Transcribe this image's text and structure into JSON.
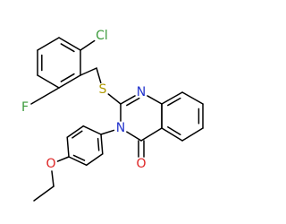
{
  "atoms": [
    {
      "label": "Cl",
      "color": "#3a9a3a"
    },
    {
      "label": "F",
      "color": "#3a9a3a"
    },
    {
      "label": "S",
      "color": "#b09a00"
    },
    {
      "label": "N",
      "color": "#2233cc"
    },
    {
      "label": "N",
      "color": "#2233cc"
    },
    {
      "label": "O",
      "color": "#dd2222"
    },
    {
      "label": "O",
      "color": "#dd2222"
    }
  ]
}
